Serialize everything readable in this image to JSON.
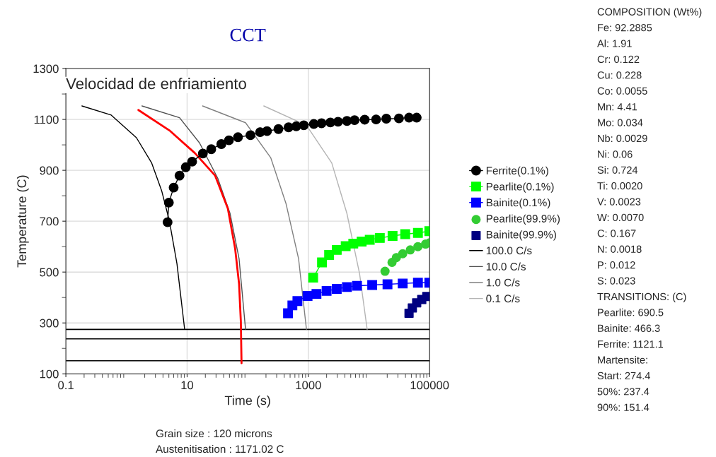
{
  "chart_data": {
    "type": "line",
    "title": "CCT",
    "xlabel": "Time (s)",
    "ylabel": "Temperature (C)",
    "log": "x",
    "grid": true,
    "legend": "right",
    "xlim": [
      0.1,
      100000
    ],
    "xticks": [
      0.1,
      10,
      1000,
      100000
    ],
    "ylim": [
      100,
      1300
    ],
    "yticks": [
      100,
      {
        "value": 200,
        "label": null
      },
      300,
      {
        "value": 400,
        "label": null
      },
      500,
      {
        "value": 600,
        "label": null
      },
      700,
      {
        "value": 800,
        "label": null
      },
      900,
      {
        "value": 1000,
        "label": null
      },
      1100,
      {
        "value": 1200,
        "label": null
      },
      1300
    ],
    "series": [
      {
        "name": "Ferrite(0.1%)",
        "color": "#000000",
        "marker": "circle",
        "x": [
          4.76,
          5.0,
          6.0,
          7.5,
          9.5,
          12.1,
          18.2,
          25,
          36.7,
          49,
          69,
          111,
          160,
          208,
          321,
          472,
          631,
          842,
          1230,
          1650,
          2310,
          3090,
          4330,
          5780,
          8500,
          13100,
          19300,
          31200,
          45800,
          61200
        ],
        "values": [
          696,
          773,
          832,
          879,
          912,
          934,
          966,
          983,
          1003,
          1018,
          1030,
          1038,
          1050,
          1054,
          1062,
          1069,
          1073,
          1077,
          1082,
          1085,
          1088,
          1091,
          1094,
          1097,
          1099,
          1100,
          1103,
          1104,
          1107,
          1107
        ]
      },
      {
        "name": "Pearlite(0.1%)",
        "color": "#00ff00",
        "marker": "square",
        "x": [
          1200,
          1680,
          2200,
          2940,
          4130,
          5510,
          7570,
          10300,
          15100,
          24500,
          39600,
          64200,
          99000
        ],
        "values": [
          478,
          538,
          567,
          587,
          602,
          612,
          620,
          627,
          634,
          642,
          649,
          654,
          661
        ]
      },
      {
        "name": "Bainite(0.1%)",
        "color": "#0000ff",
        "marker": "square",
        "x": [
          462,
          545,
          660,
          970,
          1360,
          2000,
          2940,
          4330,
          6350,
          11300,
          20200,
          36000,
          64200,
          99000
        ],
        "values": [
          338,
          369,
          386,
          406,
          414,
          426,
          434,
          441,
          446,
          449,
          452,
          455,
          458,
          458
        ]
      },
      {
        "name": "Pearlite(99.9%)",
        "color": "#33cc33",
        "type": "scatter",
        "marker": "circle",
        "x": [
          18400,
          24000,
          28300,
          36000,
          48000,
          64200,
          85800,
          100000
        ],
        "values": [
          503,
          538,
          557,
          572,
          587,
          600,
          610,
          615
        ]
      },
      {
        "name": "Bainite(99.9%)",
        "color": "#000080",
        "type": "scatter",
        "marker": "square",
        "x": [
          45800,
          51900,
          61200,
          74200,
          90000
        ],
        "values": [
          338,
          359,
          379,
          392,
          404
        ]
      },
      {
        "name": "100.0 C/s",
        "color": "#000000",
        "marker": "none",
        "x": [
          0.184,
          0.56,
          1.46,
          2.6,
          3.8,
          5.1,
          6.8,
          9.1
        ],
        "values": [
          1153,
          1117,
          1028,
          929,
          820,
          701,
          533,
          275
        ]
      },
      {
        "name": "10.0 C/s",
        "color": "#505050",
        "marker": "none",
        "x": [
          1.8,
          7.5,
          16,
          32,
          51,
          72,
          92
        ],
        "values": [
          1153,
          1107,
          1008,
          869,
          731,
          552,
          275
        ]
      },
      {
        "name": "1.0 C/s",
        "color": "#808080",
        "marker": "none",
        "x": [
          18,
          92,
          240,
          427,
          690,
          930
        ],
        "values": [
          1153,
          1087,
          949,
          770,
          552,
          275
        ]
      },
      {
        "name": "0.1 C/s",
        "color": "#b4b4b4",
        "marker": "none",
        "x": [
          184,
          930,
          2430,
          4320,
          7000,
          9330
        ],
        "values": [
          1153,
          1077,
          929,
          731,
          493,
          275
        ]
      },
      {
        "color": "#ff0000",
        "marker": "none",
        "x": [
          1.57,
          5.1,
          13.4,
          29,
          47,
          62,
          72,
          77,
          79
        ],
        "values": [
          1137,
          1057,
          968,
          879,
          750,
          592,
          453,
          305,
          142
        ]
      }
    ],
    "ref_lines": [
      {
        "axis": "y",
        "value": 274.4,
        "color": "#000000"
      },
      {
        "axis": "y",
        "value": 237.4,
        "color": "#000000"
      },
      {
        "axis": "y",
        "value": 151.4,
        "color": "#000000"
      }
    ],
    "annotations": [
      "Velocidad de enfriamiento",
      "Grain size : 120 microns",
      "Austenitisation : 1171.02 C",
      "COMPOSITION (Wt%)",
      "Fe: 92.2885",
      "Al: 1.91",
      "Cr: 0.122",
      "Cu: 0.228",
      "Co: 0.0055",
      "Mn: 4.41",
      "Mo: 0.034",
      "Nb: 0.0029",
      "Ni: 0.06",
      "Si: 0.724",
      "Ti: 0.0020",
      "V: 0.0023",
      "W: 0.0070",
      "C: 0.167",
      "N: 0.0018",
      "P: 0.012",
      "S: 0.023",
      "TRANSITIONS: (C)",
      "Pearlite: 690.5",
      "Bainite: 466.3",
      "Ferrite: 1121.1",
      "Martensite:",
      "Start: 274.4",
      "50%: 237.4",
      "90%: 151.4"
    ]
  }
}
